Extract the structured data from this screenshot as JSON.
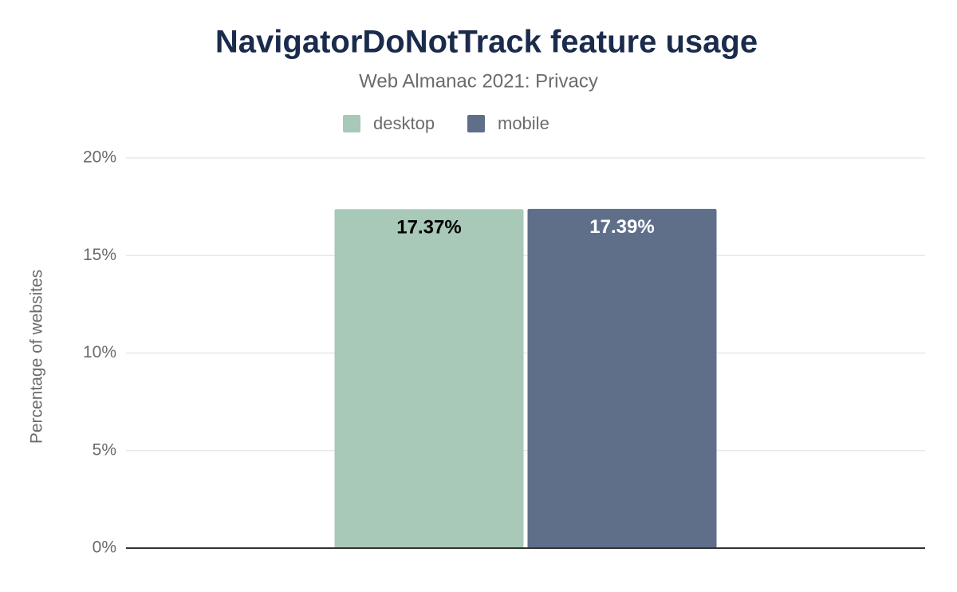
{
  "chart_data": {
    "type": "bar",
    "title": "NavigatorDoNotTrack feature usage",
    "subtitle": "Web Almanac 2021: Privacy",
    "y_label": "Percentage of websites",
    "categories": [
      null
    ],
    "series": [
      {
        "name": "desktop",
        "color": "#a8c8b8",
        "label_color": "#000000",
        "values": [
          17.37
        ],
        "value_labels": [
          "17.37%"
        ]
      },
      {
        "name": "mobile",
        "color": "#5f6f8a",
        "label_color": "#ffffff",
        "values": [
          17.39
        ],
        "value_labels": [
          "17.39%"
        ]
      }
    ],
    "ylim": [
      0,
      20
    ],
    "yticks": [
      {
        "value": 0,
        "label": "0%"
      },
      {
        "value": 5,
        "label": "5%"
      },
      {
        "value": 10,
        "label": "10%"
      },
      {
        "value": 15,
        "label": "15%"
      },
      {
        "value": 20,
        "label": "20%"
      }
    ],
    "grid": true,
    "legend": "top"
  }
}
